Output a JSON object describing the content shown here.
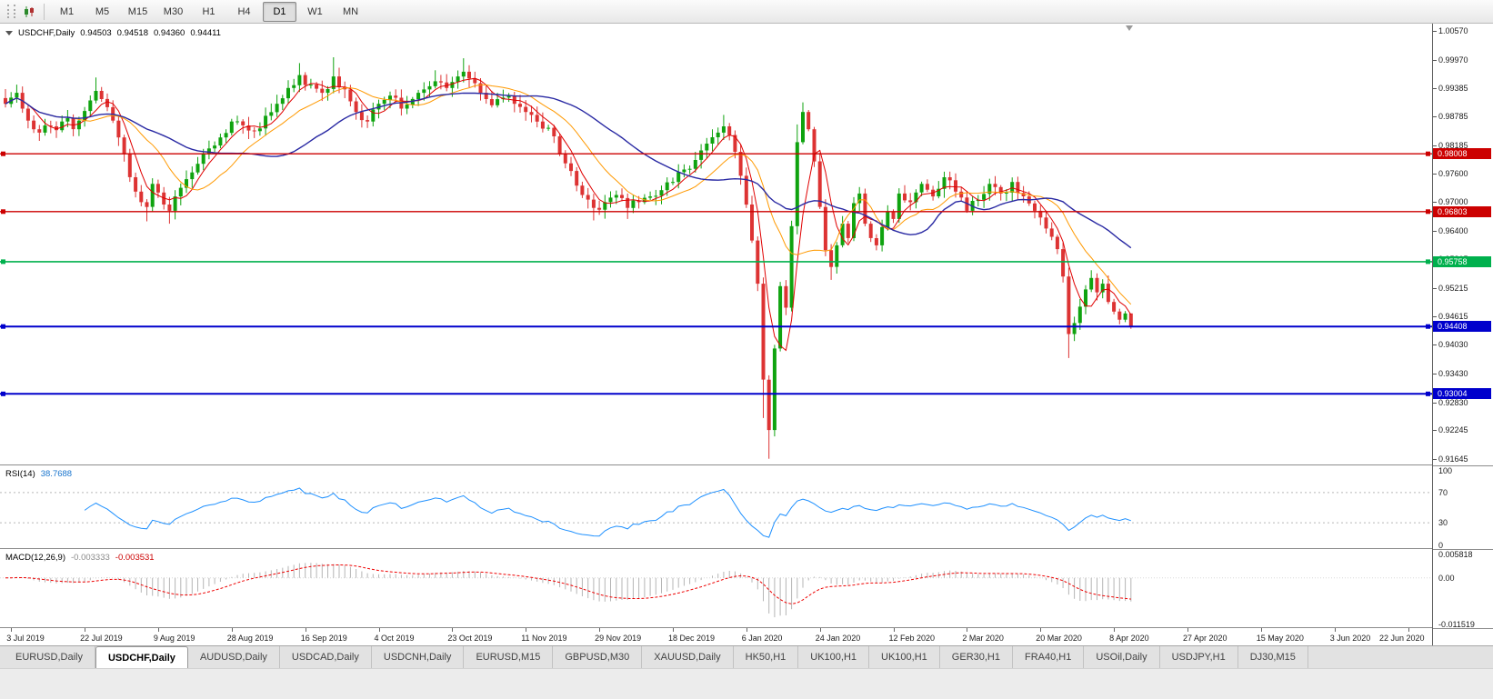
{
  "toolbar": {
    "timeframes": [
      "M1",
      "M5",
      "M15",
      "M30",
      "H1",
      "H4",
      "D1",
      "W1",
      "MN"
    ],
    "active_timeframe": "D1"
  },
  "chart": {
    "symbol": "USDCHF,Daily",
    "ohlc": {
      "open": "0.94503",
      "high": "0.94518",
      "low": "0.94360",
      "close": "0.94411"
    },
    "price_axis": [
      "1.00570",
      "0.99970",
      "0.99385",
      "0.98785",
      "0.98185",
      "0.97600",
      "0.97000",
      "0.96400",
      "0.95815",
      "0.95215",
      "0.94615",
      "0.94030",
      "0.93430",
      "0.92830",
      "0.92245",
      "0.91645"
    ],
    "hlines": [
      {
        "price": 0.98008,
        "label": "0.98008",
        "color": "#cc0000",
        "width": 1.4
      },
      {
        "price": 0.96803,
        "label": "0.96803",
        "color": "#cc0000",
        "width": 1.4
      },
      {
        "price": 0.95758,
        "label": "0.95758",
        "color": "#00b04d",
        "width": 1.6
      },
      {
        "price": 0.94408,
        "label": "0.94408",
        "color": "#0000cc",
        "width": 2
      },
      {
        "price": 0.93004,
        "label": "0.93004",
        "color": "#0000cc",
        "width": 2
      }
    ],
    "dates": [
      "3 Jul 2019",
      "22 Jul 2019",
      "9 Aug 2019",
      "28 Aug 2019",
      "16 Sep 2019",
      "4 Oct 2019",
      "23 Oct 2019",
      "11 Nov 2019",
      "29 Nov 2019",
      "18 Dec 2019",
      "6 Jan 2020",
      "24 Jan 2020",
      "12 Feb 2020",
      "2 Mar 2020",
      "20 Mar 2020",
      "8 Apr 2020",
      "27 Apr 2020",
      "15 May 2020",
      "3 Jun 2020",
      "22 Jun 2020"
    ]
  },
  "rsi": {
    "name": "RSI(14)",
    "value": "38.7688",
    "levels": [
      "100",
      "70",
      "30",
      "0"
    ]
  },
  "macd": {
    "name": "MACD(12,26,9)",
    "value_main": "-0.003333",
    "value_signal": "-0.003531",
    "levels": [
      "0.005818",
      "0.00",
      "-0.011519"
    ]
  },
  "tabs": [
    {
      "label": "EURUSD,Daily",
      "active": false
    },
    {
      "label": "USDCHF,Daily",
      "active": true
    },
    {
      "label": "AUDUSD,Daily",
      "active": false
    },
    {
      "label": "USDCAD,Daily",
      "active": false
    },
    {
      "label": "USDCNH,Daily",
      "active": false
    },
    {
      "label": "EURUSD,M15",
      "active": false
    },
    {
      "label": "GBPUSD,M30",
      "active": false
    },
    {
      "label": "XAUUSD,Daily",
      "active": false
    },
    {
      "label": "HK50,H1",
      "active": false
    },
    {
      "label": "UK100,H1",
      "active": false
    },
    {
      "label": "UK100,H1",
      "active": false
    },
    {
      "label": "GER30,H1",
      "active": false
    },
    {
      "label": "FRA40,H1",
      "active": false
    },
    {
      "label": "USOil,Daily",
      "active": false
    },
    {
      "label": "USDJPY,H1",
      "active": false
    },
    {
      "label": "DJ30,M15",
      "active": false
    }
  ],
  "chart_data": {
    "type": "candlestick",
    "symbol": "USDCHF",
    "timeframe": "Daily",
    "bars": 200,
    "noise": 0.0011,
    "candle_colors": {
      "up": "#0fa30f",
      "down": "#dd3333"
    },
    "moving_averages": [
      {
        "period": 5,
        "color": "#e00000",
        "width": 1
      },
      {
        "period": 13,
        "color": "#ff9900",
        "width": 1
      },
      {
        "period": 30,
        "color": "#2929a3",
        "width": 1.4
      }
    ],
    "indicators": [
      {
        "name": "RSI",
        "params": "14",
        "last_value": 38.7688,
        "color": "#1e90ff",
        "overbought": 70,
        "oversold": 30
      },
      {
        "name": "MACD",
        "params": "12,26,9",
        "last_main": -0.003333,
        "last_signal": -0.003531,
        "histogram_color": "#b5b5b5",
        "signal_color": "#ee0000",
        "axis_max": 0.005818,
        "axis_min": -0.011519
      }
    ],
    "key_levels": [
      0.98008,
      0.96803,
      0.95758,
      0.94408,
      0.93004
    ],
    "visible_low": 0.91645,
    "visible_high": 1.0057,
    "anchors": [
      [
        0,
        0.9905
      ],
      [
        1,
        0.9918
      ],
      [
        2,
        0.9928
      ],
      [
        3,
        0.9895
      ],
      [
        4,
        0.987
      ],
      [
        5,
        0.9852
      ],
      [
        6,
        0.9845
      ],
      [
        7,
        0.986
      ],
      [
        8,
        0.9858
      ],
      [
        9,
        0.985
      ],
      [
        10,
        0.9868
      ],
      [
        11,
        0.9875
      ],
      [
        12,
        0.9852
      ],
      [
        13,
        0.987
      ],
      [
        14,
        0.989
      ],
      [
        15,
        0.9912
      ],
      [
        16,
        0.9932
      ],
      [
        17,
        0.9915
      ],
      [
        18,
        0.9898
      ],
      [
        19,
        0.987
      ],
      [
        20,
        0.9835
      ],
      [
        21,
        0.98
      ],
      [
        22,
        0.9752
      ],
      [
        23,
        0.9722
      ],
      [
        24,
        0.97
      ],
      [
        25,
        0.969
      ],
      [
        26,
        0.9738
      ],
      [
        27,
        0.972
      ],
      [
        28,
        0.9695
      ],
      [
        29,
        0.9682
      ],
      [
        30,
        0.9712
      ],
      [
        31,
        0.973
      ],
      [
        32,
        0.9748
      ],
      [
        33,
        0.9762
      ],
      [
        34,
        0.978
      ],
      [
        36,
        0.9812
      ],
      [
        38,
        0.9835
      ],
      [
        40,
        0.9868
      ],
      [
        42,
        0.986
      ],
      [
        44,
        0.9848
      ],
      [
        46,
        0.988
      ],
      [
        48,
        0.9905
      ],
      [
        50,
        0.9938
      ],
      [
        52,
        0.9965
      ],
      [
        54,
        0.9945
      ],
      [
        56,
        0.9928
      ],
      [
        58,
        0.9962
      ],
      [
        60,
        0.9935
      ],
      [
        62,
        0.9888
      ],
      [
        64,
        0.9868
      ],
      [
        66,
        0.9905
      ],
      [
        68,
        0.9922
      ],
      [
        70,
        0.9895
      ],
      [
        72,
        0.9915
      ],
      [
        74,
        0.9935
      ],
      [
        76,
        0.9952
      ],
      [
        78,
        0.9938
      ],
      [
        80,
        0.9962
      ],
      [
        81,
        0.9972
      ],
      [
        82,
        0.9958
      ],
      [
        83,
        0.9948
      ],
      [
        84,
        0.9928
      ],
      [
        86,
        0.9902
      ],
      [
        88,
        0.9918
      ],
      [
        90,
        0.9905
      ],
      [
        92,
        0.9888
      ],
      [
        94,
        0.9868
      ],
      [
        96,
        0.9855
      ],
      [
        98,
        0.98
      ],
      [
        100,
        0.9765
      ],
      [
        102,
        0.9715
      ],
      [
        104,
        0.9688
      ],
      [
        106,
        0.97
      ],
      [
        108,
        0.9715
      ],
      [
        110,
        0.9688
      ],
      [
        112,
        0.97
      ],
      [
        114,
        0.9712
      ],
      [
        116,
        0.9725
      ],
      [
        118,
        0.9742
      ],
      [
        120,
        0.9768
      ],
      [
        122,
        0.9788
      ],
      [
        124,
        0.9822
      ],
      [
        126,
        0.9845
      ],
      [
        127,
        0.9858
      ],
      [
        128,
        0.984
      ],
      [
        129,
        0.9805
      ],
      [
        130,
        0.9755
      ],
      [
        131,
        0.9695
      ],
      [
        132,
        0.962
      ],
      [
        133,
        0.953
      ],
      [
        134,
        0.933
      ],
      [
        135,
        0.9225
      ],
      [
        136,
        0.9395
      ],
      [
        137,
        0.9525
      ],
      [
        138,
        0.948
      ],
      [
        139,
        0.965
      ],
      [
        140,
        0.9825
      ],
      [
        141,
        0.9888
      ],
      [
        142,
        0.9852
      ],
      [
        143,
        0.9785
      ],
      [
        144,
        0.969
      ],
      [
        145,
        0.96
      ],
      [
        146,
        0.9565
      ],
      [
        147,
        0.961
      ],
      [
        148,
        0.9655
      ],
      [
        149,
        0.9625
      ],
      [
        150,
        0.9698
      ],
      [
        151,
        0.9718
      ],
      [
        152,
        0.9655
      ],
      [
        153,
        0.9625
      ],
      [
        154,
        0.961
      ],
      [
        155,
        0.9648
      ],
      [
        156,
        0.968
      ],
      [
        157,
        0.9665
      ],
      [
        158,
        0.9718
      ],
      [
        160,
        0.97
      ],
      [
        162,
        0.9738
      ],
      [
        164,
        0.9712
      ],
      [
        166,
        0.9752
      ],
      [
        168,
        0.9722
      ],
      [
        170,
        0.9682
      ],
      [
        172,
        0.9705
      ],
      [
        174,
        0.9738
      ],
      [
        176,
        0.9718
      ],
      [
        178,
        0.9742
      ],
      [
        180,
        0.9712
      ],
      [
        182,
        0.9682
      ],
      [
        184,
        0.9645
      ],
      [
        186,
        0.9602
      ],
      [
        187,
        0.9545
      ],
      [
        188,
        0.9425
      ],
      [
        189,
        0.9448
      ],
      [
        190,
        0.9482
      ],
      [
        191,
        0.9518
      ],
      [
        192,
        0.9542
      ],
      [
        193,
        0.9512
      ],
      [
        194,
        0.953
      ],
      [
        195,
        0.9492
      ],
      [
        196,
        0.9472
      ],
      [
        197,
        0.9455
      ],
      [
        198,
        0.9468
      ],
      [
        199,
        0.9441
      ]
    ],
    "wick_overrides": {
      "2": {
        "h": 0.9945
      },
      "16": {
        "h": 0.996
      },
      "25": {
        "l": 0.966
      },
      "29": {
        "l": 0.9655
      },
      "52": {
        "h": 0.999
      },
      "58": {
        "h": 1.0002
      },
      "76": {
        "h": 0.9975
      },
      "81": {
        "h": 1.0
      },
      "104": {
        "l": 0.9662
      },
      "110": {
        "l": 0.9665
      },
      "127": {
        "h": 0.9882
      },
      "134": {
        "l": 0.925
      },
      "135": {
        "l": 0.9165
      },
      "140": {
        "h": 0.9862
      },
      "141": {
        "h": 0.9908
      },
      "146": {
        "l": 0.9538
      },
      "188": {
        "l": 0.9375
      },
      "192": {
        "h": 0.9558
      },
      "199": {
        "h": 0.9452,
        "l": 0.9436
      }
    }
  }
}
